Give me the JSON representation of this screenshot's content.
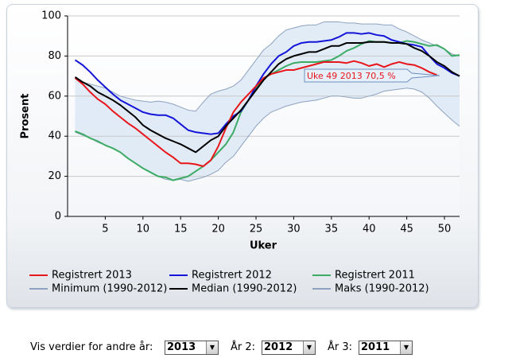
{
  "chart_data": {
    "type": "line",
    "x_label": "Uker",
    "y_label": "Prosent",
    "x": [
      1,
      2,
      3,
      4,
      5,
      6,
      7,
      8,
      9,
      10,
      11,
      12,
      13,
      14,
      15,
      16,
      17,
      18,
      19,
      20,
      21,
      22,
      23,
      24,
      25,
      26,
      27,
      28,
      29,
      30,
      31,
      32,
      33,
      34,
      35,
      36,
      37,
      38,
      39,
      40,
      41,
      42,
      43,
      44,
      45,
      46,
      47,
      48,
      49,
      50,
      51,
      52
    ],
    "xlim": [
      0,
      52
    ],
    "xticks": [
      5,
      10,
      15,
      20,
      25,
      30,
      35,
      40,
      45,
      50
    ],
    "ylim": [
      0,
      100
    ],
    "yticks": [
      0,
      20,
      40,
      60,
      80,
      100
    ],
    "grid": true,
    "band_color": "#dbe7f5",
    "series": [
      {
        "name": "Registrert 2013",
        "color": "#e8161b",
        "values": [
          69,
          66,
          62,
          58.5,
          56,
          52.5,
          49.5,
          46.5,
          44,
          41,
          38,
          35,
          32,
          29.5,
          26.5,
          26.5,
          26,
          25,
          28,
          35,
          44,
          52,
          57,
          61,
          65,
          69,
          71,
          72,
          73,
          73,
          74,
          75,
          76,
          77,
          77,
          77,
          76.5,
          77.5,
          76.5,
          75,
          76,
          74.5,
          76,
          77,
          76,
          75.5,
          74,
          72,
          70.5,
          null,
          null,
          null
        ]
      },
      {
        "name": "Registrert 2012",
        "color": "#1414d8",
        "values": [
          78,
          75.5,
          72,
          68,
          64.5,
          61,
          58,
          56,
          54,
          52,
          51,
          50.5,
          50.5,
          49,
          46,
          43,
          42,
          41.5,
          41,
          41.5,
          46,
          50,
          52.5,
          58,
          65,
          71,
          76,
          80,
          82,
          85,
          86.5,
          87,
          87,
          87.5,
          88,
          89.5,
          91.5,
          91.5,
          91,
          91.5,
          90.5,
          90,
          88,
          87,
          86,
          85.5,
          84.5,
          80,
          76,
          74,
          71.5,
          70
        ]
      },
      {
        "name": "Registrert 2011",
        "color": "#3cab64",
        "values": [
          42.5,
          41,
          39,
          37.5,
          35.5,
          34,
          32,
          29,
          26.5,
          24,
          22,
          20,
          19.5,
          18,
          19,
          20,
          22.5,
          25,
          28,
          32,
          36,
          42,
          52,
          58,
          64,
          69,
          71,
          73,
          75,
          76.5,
          77,
          77,
          77,
          77.5,
          78,
          80,
          82.5,
          84,
          86,
          87.5,
          87,
          87,
          86.5,
          86.5,
          87.5,
          87,
          86,
          85,
          85.5,
          83.5,
          80,
          80.5
        ]
      },
      {
        "name": "Minimum (1990-2012)",
        "color": "#8ea2bf",
        "values": [
          42,
          40.5,
          39,
          37,
          35.5,
          34,
          32,
          29,
          26.5,
          24,
          22,
          20,
          18.5,
          18,
          18.5,
          17.5,
          18.5,
          19.5,
          21,
          23,
          27,
          30,
          35,
          40,
          45,
          49,
          52,
          53.5,
          55,
          56,
          57,
          57.5,
          58,
          59,
          60,
          60,
          59.5,
          59,
          59,
          60,
          61,
          62.5,
          63,
          63.5,
          64,
          63.5,
          62,
          59,
          55,
          51.5,
          48,
          45
        ]
      },
      {
        "name": "Median (1990-2012)",
        "color": "#000000",
        "values": [
          69.5,
          67,
          65,
          62,
          60,
          58,
          55.5,
          52.5,
          49.5,
          45.5,
          43,
          41,
          39,
          37.5,
          36,
          34,
          32,
          35,
          38,
          40,
          45,
          49,
          53,
          58,
          63,
          68,
          72,
          76,
          78.5,
          80,
          81,
          82,
          82,
          83.5,
          85,
          85,
          86.5,
          86.5,
          86.5,
          87,
          87,
          87,
          86.5,
          86.5,
          86,
          84,
          82.5,
          80,
          77,
          75,
          72,
          70
        ]
      },
      {
        "name": "Maks (1990-2012)",
        "color": "#8ea2bf",
        "values": [
          69,
          67,
          66,
          65,
          64,
          62,
          60,
          59,
          58,
          57.5,
          57,
          57.5,
          57,
          56,
          54.5,
          53,
          52.5,
          57,
          61,
          62.5,
          63.5,
          65,
          68,
          73,
          78,
          83,
          86,
          90,
          93,
          94,
          95,
          95.5,
          95.5,
          97,
          97,
          97,
          96.5,
          96.5,
          96,
          96,
          96,
          95.5,
          95.5,
          93.5,
          92,
          90,
          88,
          86.5,
          85,
          83.5,
          81,
          80
        ]
      }
    ],
    "tooltip": "Uke 49 2013 70,5 %"
  },
  "controls": {
    "label": "Vis verdier for andre år:",
    "year1": "2013",
    "label2": "År 2:",
    "year2": "2012",
    "label3": "År 3:",
    "year3": "2011"
  }
}
